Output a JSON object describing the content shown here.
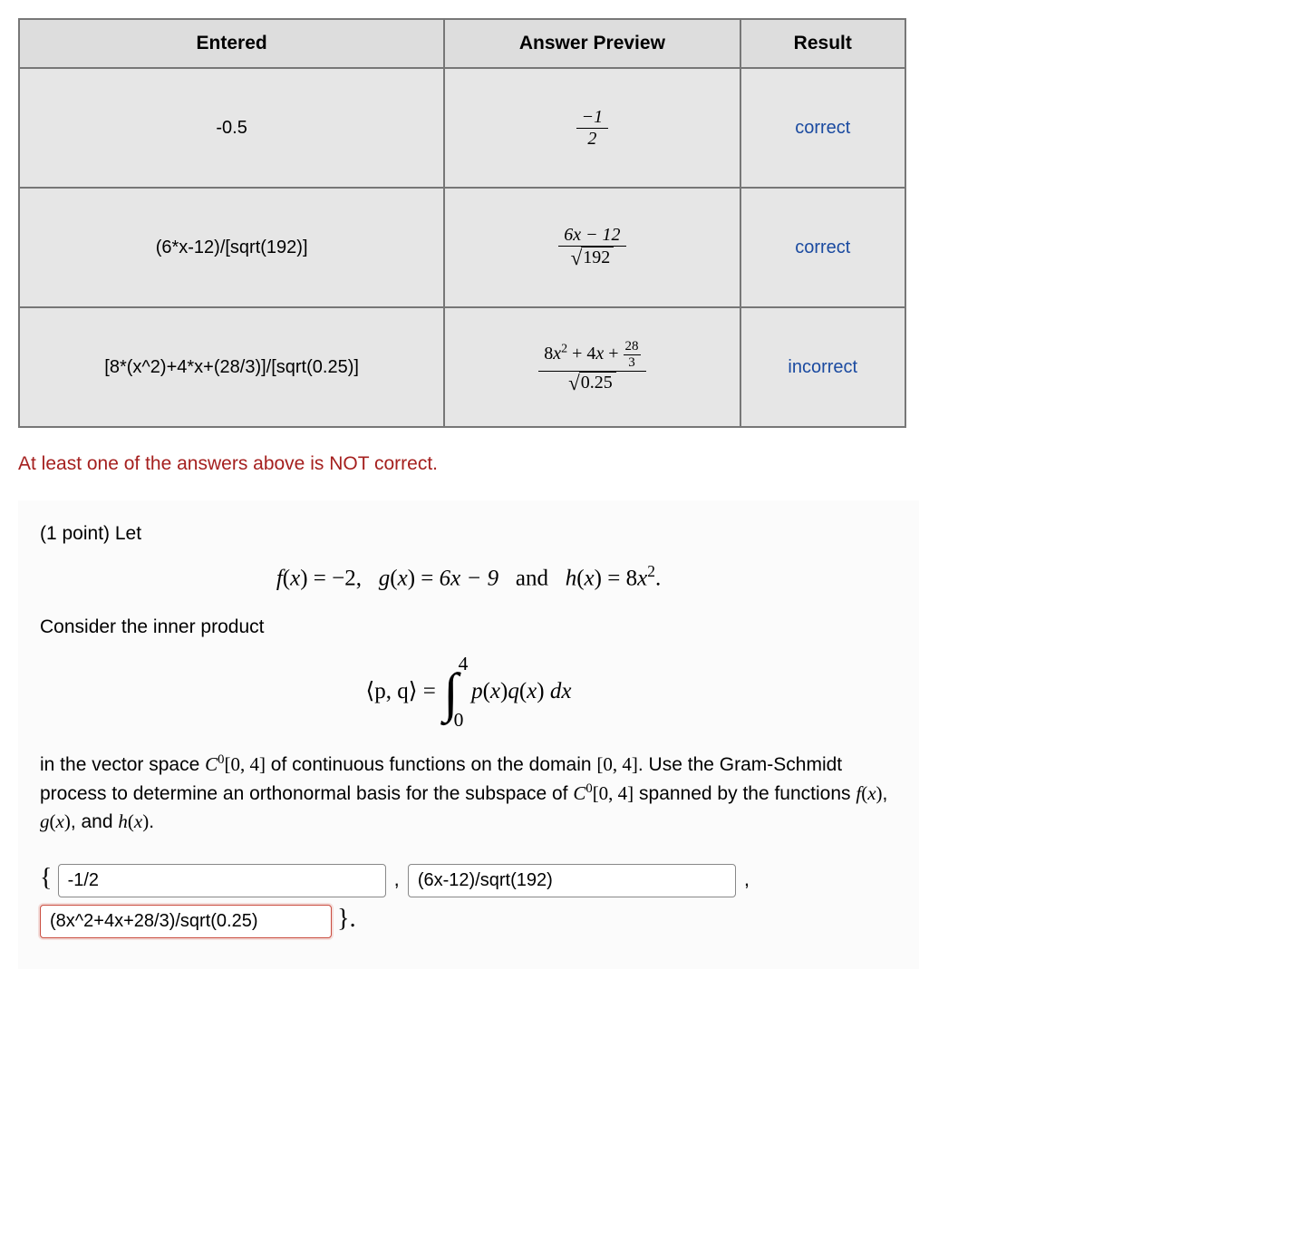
{
  "colors": {
    "header_bg": "#dddddd",
    "cell_bg": "#e6e6e6",
    "border": "#777777",
    "correct_bg": "#9be58d",
    "incorrect_bg": "#d8a6a4",
    "result_text": "#1a4aa0",
    "warn_text": "#a5201f",
    "problem_bg": "#fbfbfb",
    "input_wrong_border": "#c94b3e"
  },
  "table": {
    "headers": [
      "Entered",
      "Answer Preview",
      "Result"
    ],
    "rows": [
      {
        "entered": "-0.5",
        "preview": {
          "type": "frac",
          "num": "−1",
          "den": "2"
        },
        "result": "correct",
        "result_state": "correct"
      },
      {
        "entered": "(6*x-12)/[sqrt(192)]",
        "preview": {
          "type": "frac_over_sqrt",
          "num": "6x − 12",
          "rad": "192"
        },
        "result": "correct",
        "result_state": "correct"
      },
      {
        "entered": "[8*(x^2)+4*x+(28/3)]/[sqrt(0.25)]",
        "preview": {
          "type": "quad_over_sqrt",
          "a": "8",
          "b": "4",
          "c_num": "28",
          "c_den": "3",
          "rad": "0.25"
        },
        "result": "incorrect",
        "result_state": "incorrect"
      }
    ]
  },
  "warning": "At least one of the answers above is NOT correct.",
  "problem": {
    "points_label": "(1 point) Let",
    "functions_line": {
      "f": "−2",
      "g": "6x − 9",
      "h_prefix": "8",
      "h_exp": "2",
      "and": "and"
    },
    "inner_product_intro": "Consider the inner product",
    "inner_product": {
      "lhs": "⟨p, q⟩",
      "int_lower": "0",
      "int_upper": "4",
      "integrand_p": "p",
      "integrand_q": "q",
      "dx": "dx"
    },
    "body_before_C0": "in the vector space ",
    "space_sym": "C",
    "space_sup": "0",
    "interval": "[0, 4]",
    "body_mid": " of continuous functions on the domain ",
    "body_end": ". Use the Gram-Schmidt process to determine an orthonormal basis for the subspace of ",
    "spanned_by": " spanned by the functions ",
    "comma_and": ", and ",
    "period": "."
  },
  "answers": {
    "open_brace": "{",
    "close_brace": "}.",
    "comma": ",",
    "inputs": [
      {
        "value": "-1/2",
        "wrong": false
      },
      {
        "value": "(6x-12)/sqrt(192)",
        "wrong": false
      },
      {
        "value": "(8x^2+4x+28/3)/sqrt(0.25)",
        "wrong": true
      }
    ]
  }
}
